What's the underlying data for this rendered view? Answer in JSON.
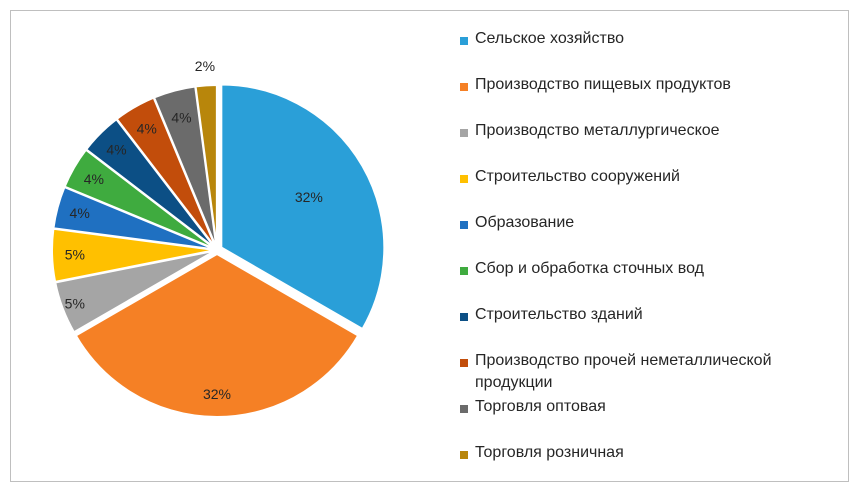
{
  "chart_data": {
    "type": "pie",
    "title": "",
    "slices": [
      {
        "label": "Сельское хозяйство",
        "value": 32,
        "display": "32%",
        "color": "#2a9fd8",
        "label_color": "#262626"
      },
      {
        "label": "Производство пищевых продуктов",
        "value": 32,
        "display": "32%",
        "color": "#f58025",
        "label_color": "#262626"
      },
      {
        "label": "Производство металлургическое",
        "value": 5,
        "display": "5%",
        "color": "#a5a5a5",
        "label_color": "#262626"
      },
      {
        "label": "Строительство сооружений",
        "value": 5,
        "display": "5%",
        "color": "#ffc000",
        "label_color": "#262626"
      },
      {
        "label": "Образование",
        "value": 4,
        "display": "4%",
        "color": "#1f70c1",
        "label_color": "#262626"
      },
      {
        "label": "Сбор и обработка сточных вод",
        "value": 4,
        "display": "4%",
        "color": "#3fab3f",
        "label_color": "#262626"
      },
      {
        "label": "Строительство зданий",
        "value": 4,
        "display": "4%",
        "color": "#0c4f85",
        "label_color": "#262626"
      },
      {
        "label": "Производство прочей неметаллической продукции",
        "value": 4,
        "display": "4%",
        "color": "#c24d0b",
        "label_color": "#262626"
      },
      {
        "label": "Торговля оптовая",
        "value": 4,
        "display": "4%",
        "color": "#6b6b6b",
        "label_color": "#262626"
      },
      {
        "label": "Торговля розничная",
        "value": 2,
        "display": "2%",
        "color": "#b8860b",
        "label_color": "#262626"
      }
    ],
    "legend_position": "right",
    "exploded": true
  }
}
